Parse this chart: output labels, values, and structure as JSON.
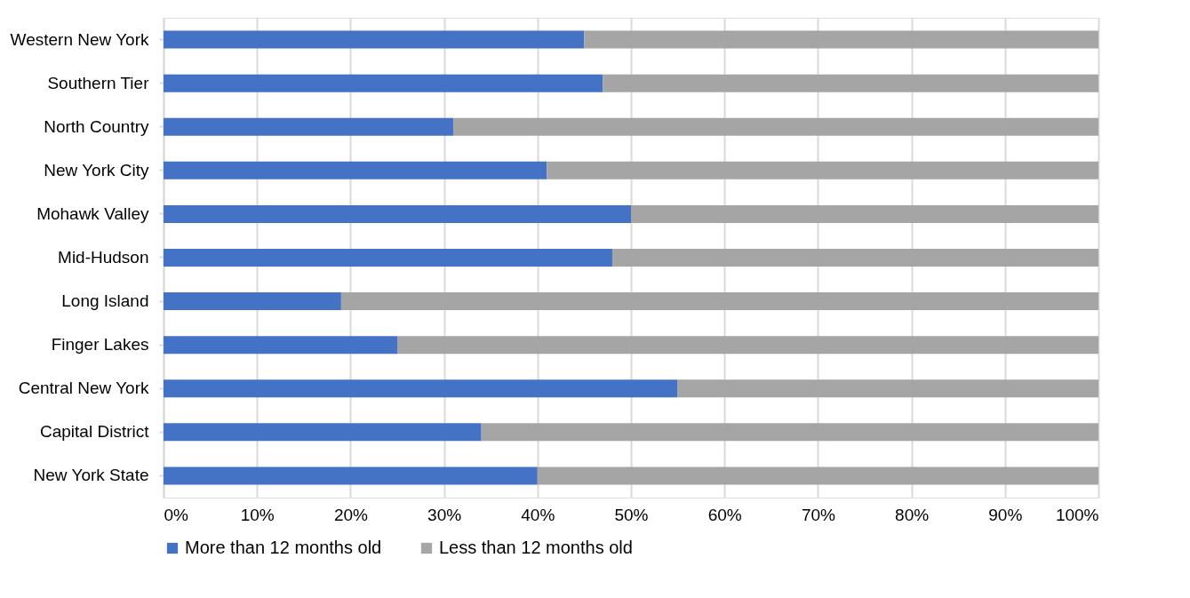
{
  "chart_data": {
    "type": "bar",
    "orientation": "horizontal",
    "stacked": true,
    "categories": [
      "Western New York",
      "Southern Tier",
      "North Country",
      "New York City",
      "Mohawk Valley",
      "Mid-Hudson",
      "Long Island",
      "Finger Lakes",
      "Central New York",
      "Capital District",
      "New York State"
    ],
    "series": [
      {
        "name": "More than 12 months old",
        "color": "#4472c4",
        "values": [
          45,
          47,
          31,
          41,
          50,
          48,
          19,
          25,
          55,
          34,
          40
        ]
      },
      {
        "name": "Less than 12 months old",
        "color": "#a5a5a5",
        "values": [
          55,
          53,
          69,
          59,
          50,
          52,
          81,
          75,
          45,
          66,
          60
        ]
      }
    ],
    "xlim": [
      0,
      100
    ],
    "xticks": [
      {
        "value": 0,
        "label": "0%"
      },
      {
        "value": 10,
        "label": "10%"
      },
      {
        "value": 20,
        "label": "20%"
      },
      {
        "value": 30,
        "label": "30%"
      },
      {
        "value": 40,
        "label": "40%"
      },
      {
        "value": 50,
        "label": "50%"
      },
      {
        "value": 60,
        "label": "60%"
      },
      {
        "value": 70,
        "label": "70%"
      },
      {
        "value": 80,
        "label": "80%"
      },
      {
        "value": 90,
        "label": "90%"
      },
      {
        "value": 100,
        "label": "100%"
      }
    ],
    "grid": "x",
    "legend": "bottom"
  }
}
